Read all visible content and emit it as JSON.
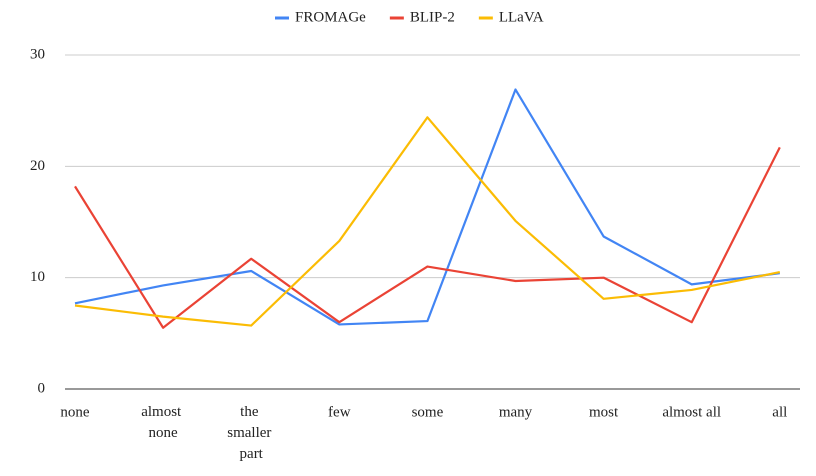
{
  "chart_data": {
    "type": "line",
    "categories": [
      "none",
      "almost none",
      "the smaller part",
      "few",
      "some",
      "many",
      "most",
      "almost all",
      "all"
    ],
    "series": [
      {
        "name": "FROMAGe",
        "color": "#4285f4",
        "values": [
          7.7,
          9.3,
          10.6,
          5.8,
          6.1,
          26.9,
          13.7,
          9.4,
          10.4
        ]
      },
      {
        "name": "BLIP-2",
        "color": "#ea4335",
        "values": [
          18.2,
          5.5,
          11.7,
          6.0,
          11.0,
          9.7,
          10.0,
          6.0,
          21.7
        ]
      },
      {
        "name": "LLaVA",
        "color": "#fbbc04",
        "values": [
          7.5,
          6.5,
          5.7,
          13.3,
          24.4,
          15.1,
          8.1,
          8.9,
          10.5
        ]
      }
    ],
    "ylim": [
      0,
      30
    ],
    "yticks": [
      0,
      10,
      20,
      30
    ],
    "grid": true,
    "legend": "top"
  }
}
